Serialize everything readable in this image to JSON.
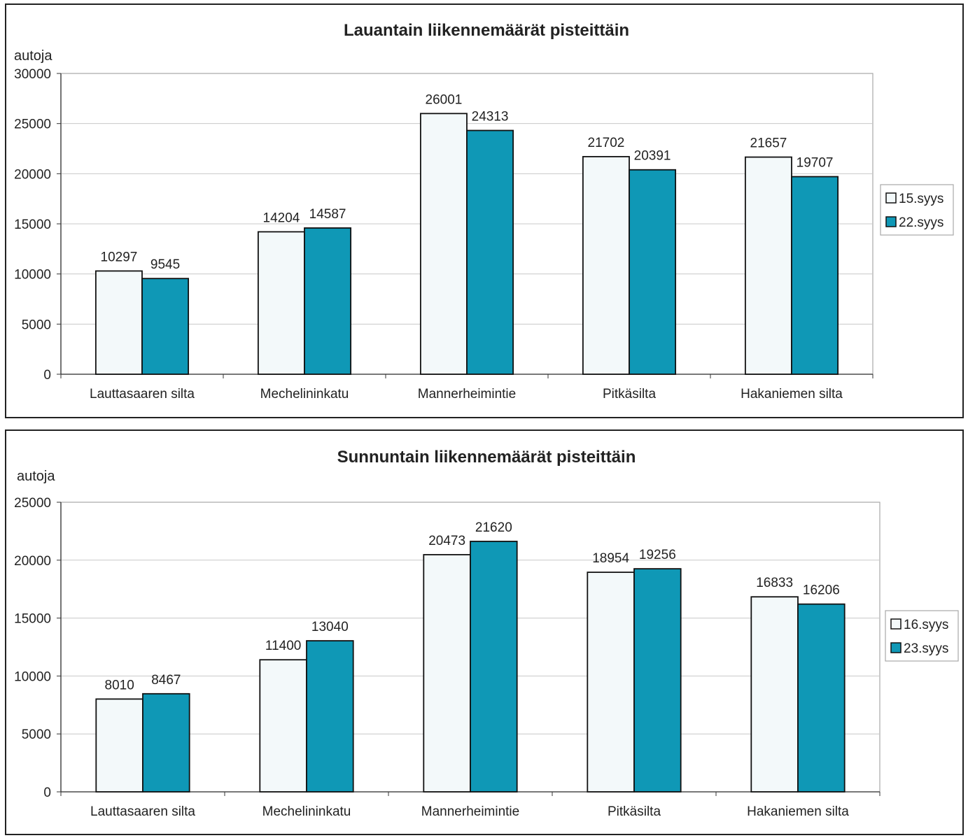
{
  "chart_data": [
    {
      "type": "bar",
      "title": "Lauantain liikennemäärät pisteittäin",
      "ylabel": "autoja",
      "xlabel": "",
      "ylim": [
        0,
        30000
      ],
      "yticks": [
        0,
        5000,
        10000,
        15000,
        20000,
        25000,
        30000
      ],
      "grid": true,
      "legend_position": "right",
      "categories": [
        "Lauttasaaren silta",
        "Mechelininkatu",
        "Mannerheimintie",
        "Pitkäsilta",
        "Hakaniemen silta"
      ],
      "series": [
        {
          "name": "15.syys",
          "values": [
            10297,
            14204,
            26001,
            21702,
            21657
          ],
          "color": "#f3f9fa"
        },
        {
          "name": "22.syys",
          "values": [
            9545,
            14587,
            24313,
            20391,
            19707
          ],
          "color": "#0f98b6"
        }
      ]
    },
    {
      "type": "bar",
      "title": "Sunnuntain liikennemäärät pisteittäin",
      "ylabel": "autoja",
      "xlabel": "",
      "ylim": [
        0,
        25000
      ],
      "yticks": [
        0,
        5000,
        10000,
        15000,
        20000,
        25000
      ],
      "grid": true,
      "legend_position": "right",
      "categories": [
        "Lauttasaaren silta",
        "Mechelininkatu",
        "Mannerheimintie",
        "Pitkäsilta",
        "Hakaniemen silta"
      ],
      "series": [
        {
          "name": "16.syys",
          "values": [
            8010,
            11400,
            20473,
            18954,
            16833
          ],
          "color": "#f3f9fa"
        },
        {
          "name": "23.syys",
          "values": [
            8467,
            13040,
            21620,
            19256,
            16206
          ],
          "color": "#0f98b6"
        }
      ]
    }
  ]
}
